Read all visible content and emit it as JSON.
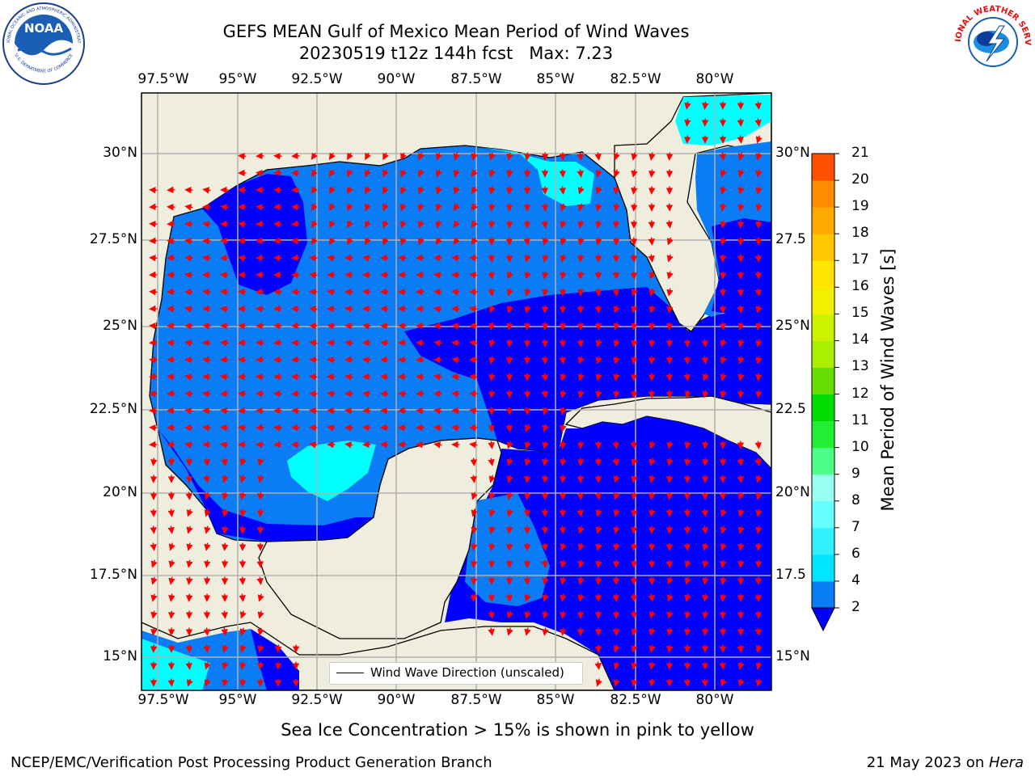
{
  "header": {
    "title_line1": "GEFS MEAN Gulf of Mexico Mean Period of Wind Waves",
    "title_line2": "20230519 t12z 144h fcst   Max: 7.23"
  },
  "logos": {
    "noaa_center": "NOAA",
    "noaa_ring_top": "NATIONAL OCEANIC AND ATMOSPHERIC ADMINISTRATION",
    "noaa_ring_bottom": "U.S. DEPARTMENT OF COMMERCE",
    "nws_ring": "NATIONAL WEATHER SERVICE"
  },
  "map": {
    "lon_labels": [
      "97.5°W",
      "95°W",
      "92.5°W",
      "90°W",
      "87.5°W",
      "85°W",
      "82.5°W",
      "80°W"
    ],
    "lat_labels_left": [
      "30°N",
      "27.5°N",
      "25°N",
      "22.5°N",
      "20°N",
      "17.5°N",
      "15°N"
    ],
    "lat_labels_right": [
      "30°N",
      "27.5",
      "25°N",
      "22.5",
      "20°N",
      "17.5",
      "15°N"
    ],
    "legend_label": "Wind Wave Direction (unscaled)",
    "colors": {
      "land": "#efedde",
      "period_2_4": "#0a7cf5",
      "period_under_2": "#0000ff",
      "period_4_6": "#00ffff",
      "arrow": "#ff0000",
      "grid": "#b0b0b0"
    }
  },
  "colorbar": {
    "title": "Mean Period of Wind Waves [s]",
    "ticks": [
      "2",
      "4",
      "6",
      "7",
      "8",
      "9",
      "10",
      "11",
      "12",
      "13",
      "14",
      "15",
      "16",
      "17",
      "18",
      "19",
      "20",
      "21"
    ],
    "colors": [
      "#0a7cf5",
      "#00e5ff",
      "#33f0ff",
      "#66ffff",
      "#99fff3",
      "#4dff88",
      "#22ee33",
      "#00dd00",
      "#66dd00",
      "#aaee00",
      "#ccf200",
      "#f0f000",
      "#ffe600",
      "#ffc800",
      "#ffaa00",
      "#ff8c00",
      "#ff5000",
      "#ff2000",
      "#ff0000"
    ]
  },
  "footer": {
    "caption": "Sea Ice Concentration > 15% is shown in pink to yellow",
    "left": "NCEP/EMC/Verification Post Processing Product Generation Branch",
    "right_date": "21 May 2023 on ",
    "right_host": "Hera"
  }
}
